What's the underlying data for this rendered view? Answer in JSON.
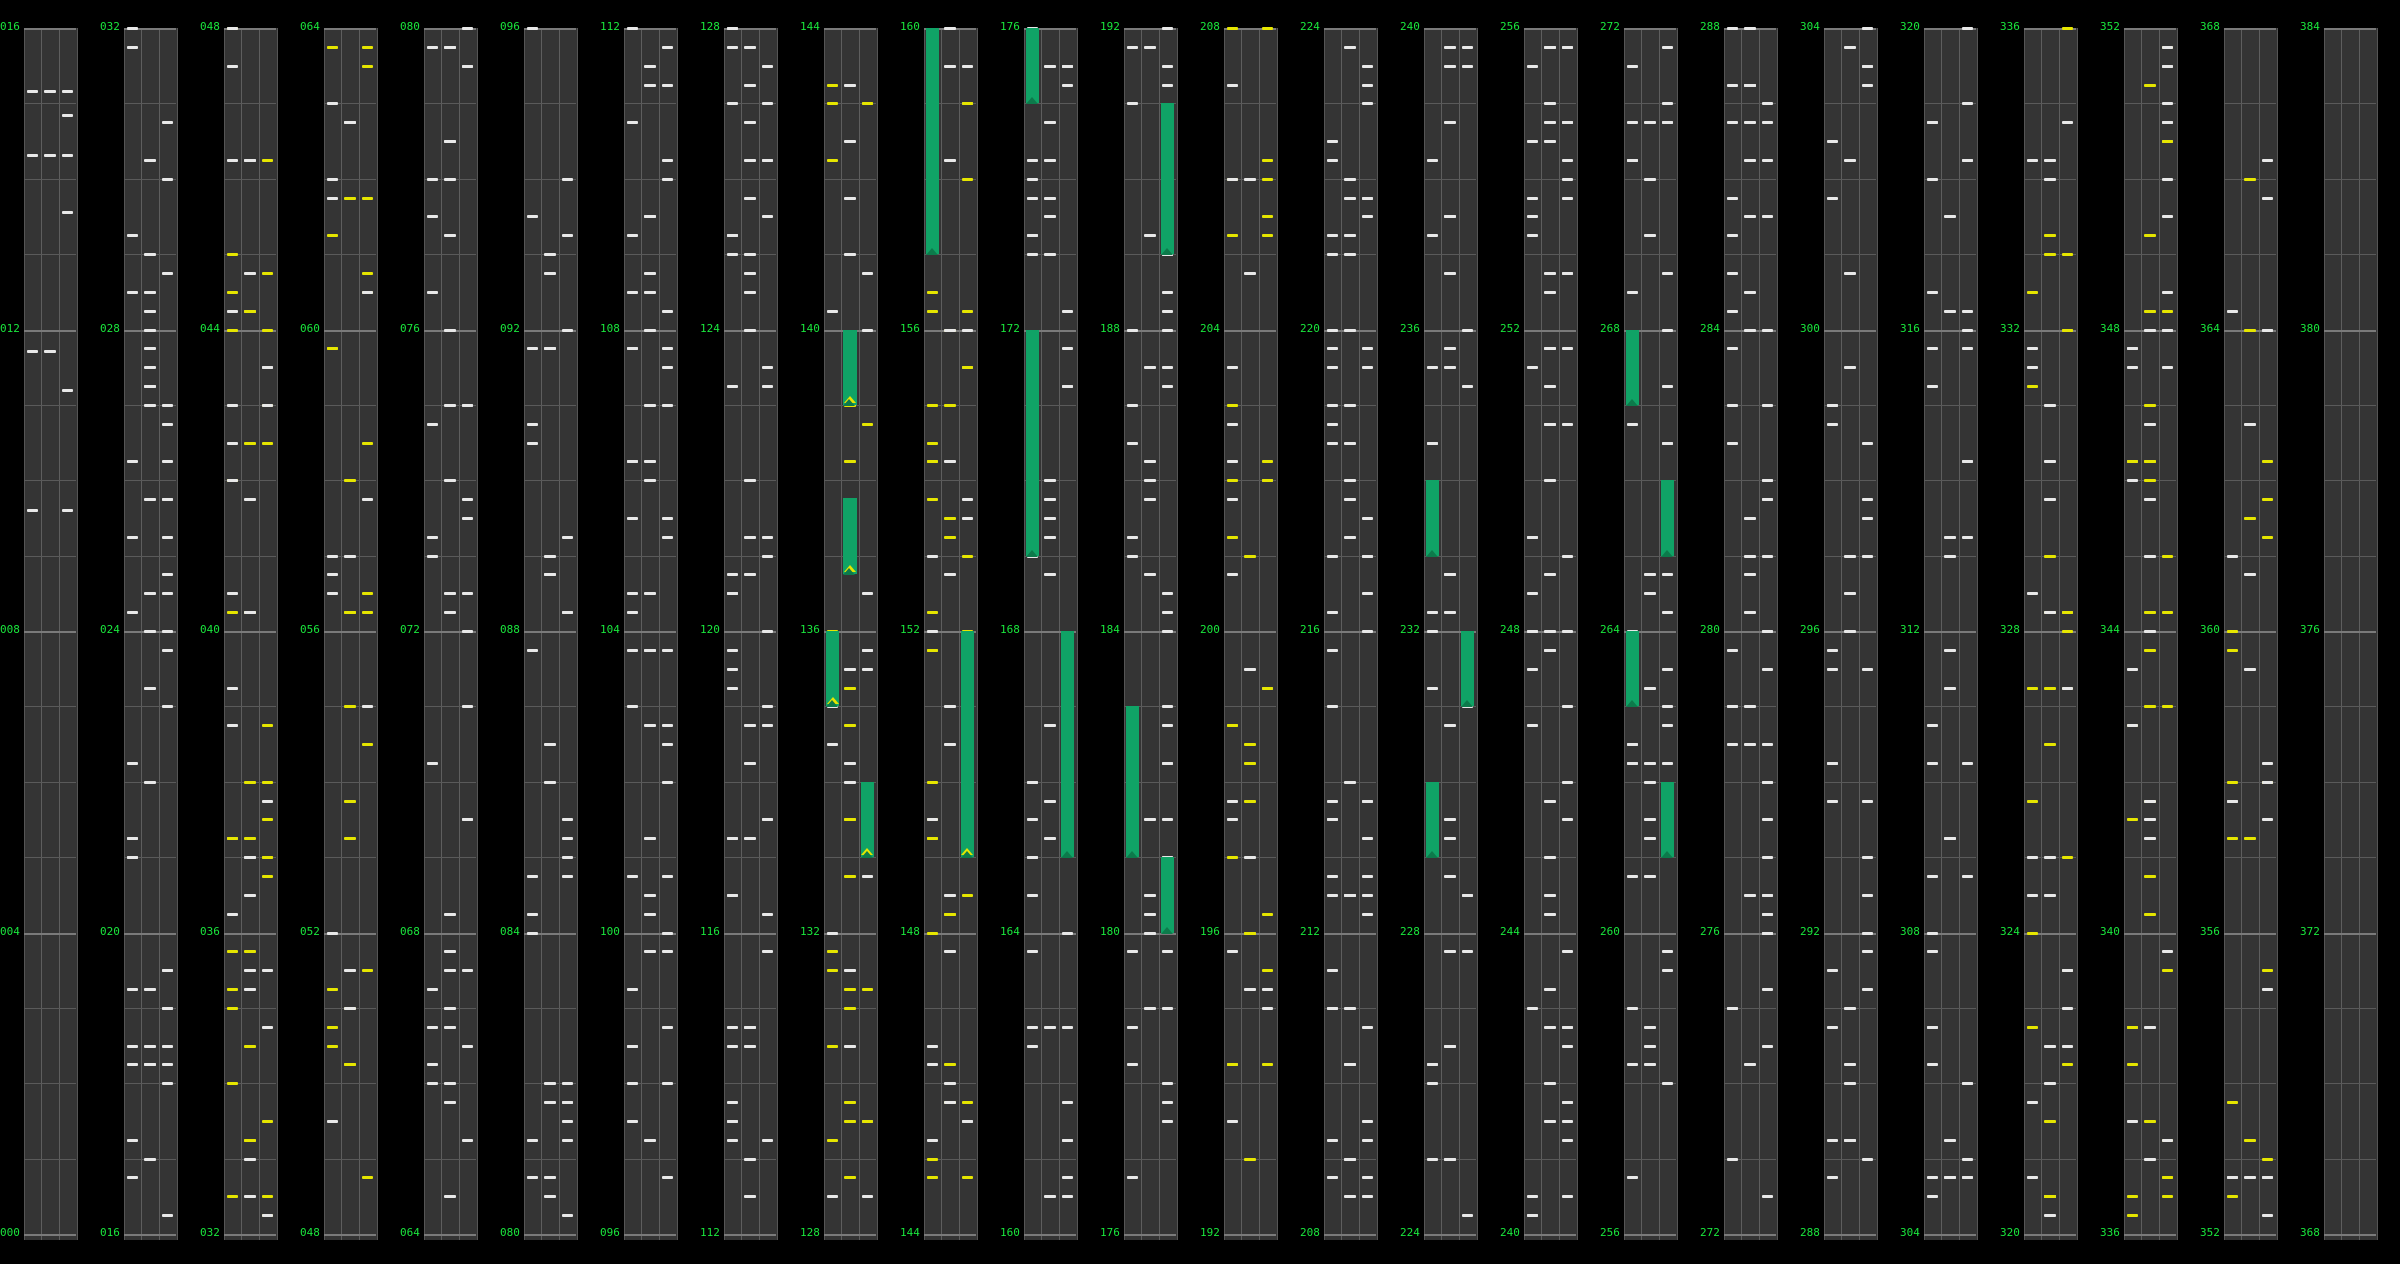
{
  "chart": {
    "columns": [
      {
        "labels": [
          "016",
          "012",
          "008",
          "004",
          "000"
        ]
      },
      {
        "labels": [
          "032",
          "028",
          "024",
          "020",
          "016"
        ]
      },
      {
        "labels": [
          "048",
          "044",
          "040",
          "036",
          "032"
        ]
      },
      {
        "labels": [
          "064",
          "060",
          "056",
          "052",
          "048"
        ]
      },
      {
        "labels": [
          "080",
          "076",
          "072",
          "068",
          "064"
        ]
      },
      {
        "labels": [
          "096",
          "092",
          "088",
          "084",
          "080"
        ]
      },
      {
        "labels": [
          "112",
          "108",
          "104",
          "100",
          "096"
        ]
      },
      {
        "labels": [
          "128",
          "124",
          "120",
          "116",
          "112"
        ]
      },
      {
        "labels": [
          "144",
          "140",
          "136",
          "132",
          "128"
        ]
      },
      {
        "labels": [
          "160",
          "156",
          "152",
          "148",
          "144"
        ]
      },
      {
        "labels": [
          "176",
          "172",
          "168",
          "164",
          "160"
        ]
      },
      {
        "labels": [
          "192",
          "188",
          "184",
          "180",
          "176"
        ]
      },
      {
        "labels": [
          "208",
          "204",
          "200",
          "196",
          "192"
        ]
      },
      {
        "labels": [
          "224",
          "220",
          "216",
          "212",
          "208"
        ]
      },
      {
        "labels": [
          "240",
          "236",
          "232",
          "228",
          "224"
        ]
      },
      {
        "labels": [
          "256",
          "252",
          "248",
          "244",
          "240"
        ]
      },
      {
        "labels": [
          "272",
          "268",
          "264",
          "260",
          "256"
        ]
      },
      {
        "labels": [
          "288",
          "284",
          "280",
          "276",
          "272"
        ]
      },
      {
        "labels": [
          "304",
          "300",
          "296",
          "292",
          "288"
        ]
      },
      {
        "labels": [
          "320",
          "316",
          "312",
          "308",
          "304"
        ]
      },
      {
        "labels": [
          "336",
          "332",
          "328",
          "324",
          "320"
        ]
      },
      {
        "labels": [
          "352",
          "348",
          "344",
          "340",
          "336"
        ]
      },
      {
        "labels": [
          "368",
          "364",
          "360",
          "356",
          "352"
        ]
      },
      {
        "labels": [
          "384",
          "380",
          "376",
          "372",
          "368"
        ]
      }
    ],
    "colors": {
      "label": "#19e63c",
      "note_normal": "#e8e8e8",
      "note_alt": "#e6e600",
      "hold": "#10a366",
      "column_bg": "#343434",
      "background": "#000000"
    },
    "lanes_per_column": 3,
    "measures_per_column": 4,
    "beats_per_measure": 4
  }
}
